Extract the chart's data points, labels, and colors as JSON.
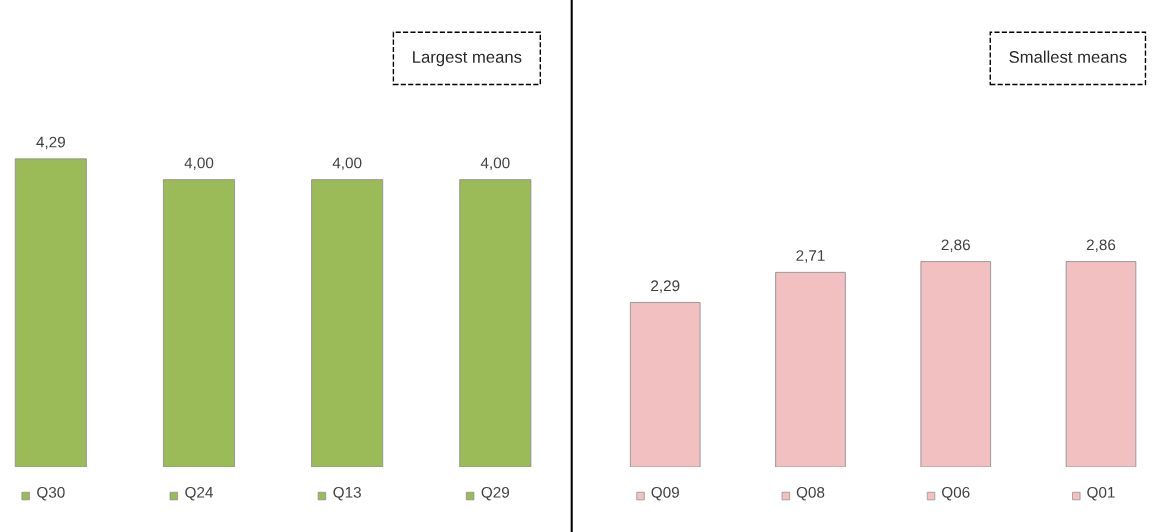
{
  "chart_data": [
    {
      "type": "bar",
      "categories": [
        "Q30",
        "Q24",
        "Q13",
        "Q29"
      ],
      "values": [
        4.29,
        4.0,
        4.0,
        4.0
      ],
      "colors": [
        "#9bbb59",
        "#9bbb59",
        "#9bbb59",
        "#9bbb59"
      ],
      "annotations": [
        "Largest means"
      ],
      "value_labels": [
        "4,29",
        "4,00",
        "4,00",
        "4,00"
      ]
    },
    {
      "type": "bar",
      "categories": [
        "Q09",
        "Q08",
        "Q06",
        "Q01"
      ],
      "values": [
        2.29,
        2.71,
        2.86,
        2.86
      ],
      "colors": [
        "#f2c0c0",
        "#f2c0c0",
        "#f2c0c0",
        "#f2c0c0"
      ],
      "annotations": [
        "Smallest means"
      ],
      "value_labels": [
        "2,29",
        "2,71",
        "2,86",
        "2,86"
      ]
    }
  ]
}
